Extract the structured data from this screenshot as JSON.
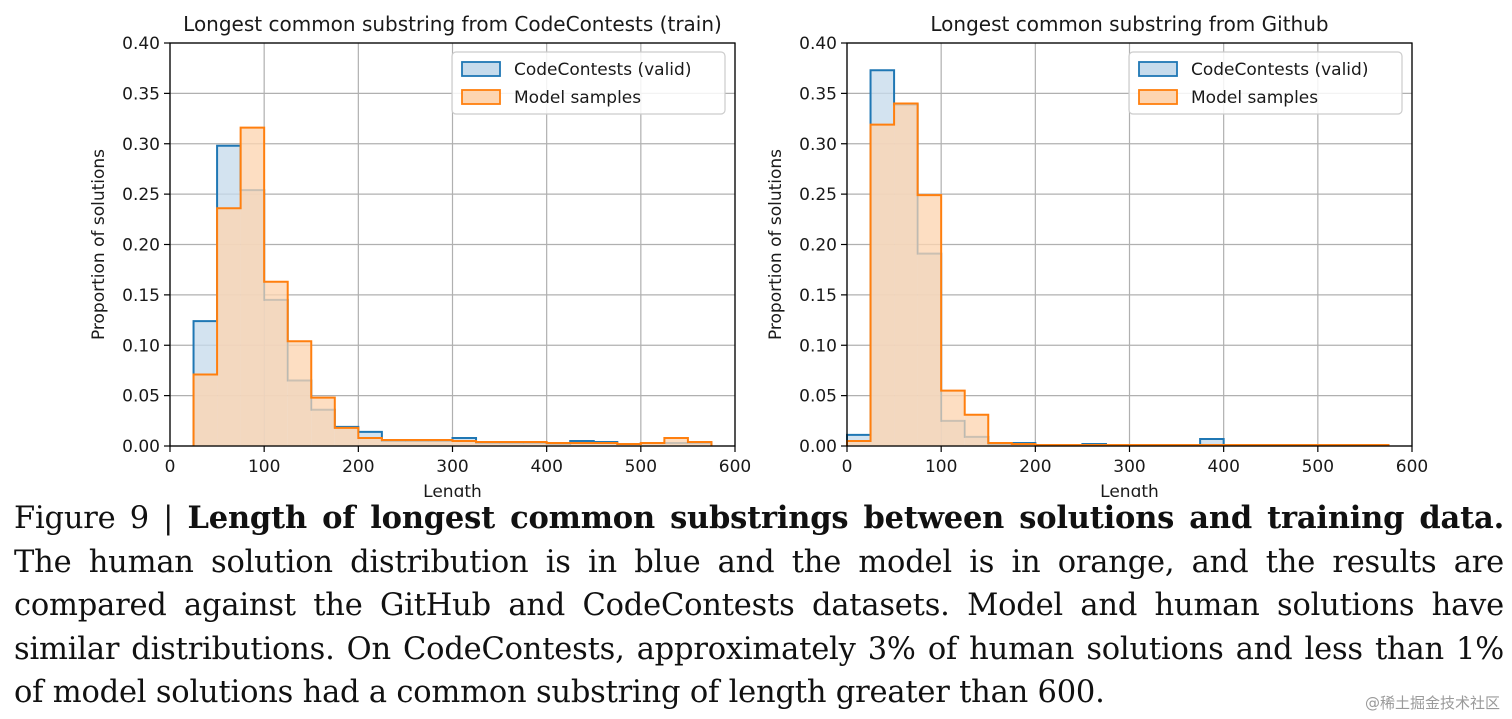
{
  "chart_data": [
    {
      "type": "histogram",
      "title": "Longest common substring from CodeContests (train)",
      "xlabel": "Length",
      "ylabel": "Proportion of solutions",
      "xlim": [
        0,
        600
      ],
      "ylim": [
        0,
        0.4
      ],
      "xticks": [
        "0",
        "100",
        "200",
        "300",
        "400",
        "500",
        "600"
      ],
      "yticks": [
        "0.00",
        "0.05",
        "0.10",
        "0.15",
        "0.20",
        "0.25",
        "0.30",
        "0.35",
        "0.40"
      ],
      "bin_edges": [
        25,
        50,
        75,
        100,
        125,
        150,
        175,
        200,
        225,
        250,
        275,
        300,
        325,
        350,
        375,
        400,
        425,
        450,
        475,
        500,
        525,
        550,
        575
      ],
      "legend_position": "top-right",
      "series": [
        {
          "name": "CodeContests (valid)",
          "color": "#1f77b4",
          "fill": "#c6dbec",
          "values": [
            0.124,
            0.298,
            0.254,
            0.145,
            0.065,
            0.036,
            0.019,
            0.014,
            0.005,
            0.005,
            0.005,
            0.008,
            0.003,
            0.003,
            0.003,
            0.002,
            0.005,
            0.004,
            0.002,
            0.003,
            0.003,
            0.003
          ]
        },
        {
          "name": "Model samples",
          "color": "#ff7f0e",
          "fill": "#fdd5b1",
          "values": [
            0.071,
            0.236,
            0.316,
            0.163,
            0.104,
            0.048,
            0.018,
            0.008,
            0.006,
            0.006,
            0.006,
            0.005,
            0.004,
            0.004,
            0.004,
            0.003,
            0.003,
            0.003,
            0.002,
            0.003,
            0.008,
            0.004
          ]
        }
      ]
    },
    {
      "type": "histogram",
      "title": "Longest common substring from Github",
      "xlabel": "Length",
      "ylabel": "Proportion of solutions",
      "xlim": [
        0,
        600
      ],
      "ylim": [
        0,
        0.4
      ],
      "xticks": [
        "0",
        "100",
        "200",
        "300",
        "400",
        "500",
        "600"
      ],
      "yticks": [
        "0.00",
        "0.05",
        "0.10",
        "0.15",
        "0.20",
        "0.25",
        "0.30",
        "0.35",
        "0.40"
      ],
      "bin_edges": [
        0,
        25,
        50,
        75,
        100,
        125,
        150,
        175,
        200,
        225,
        250,
        275,
        300,
        325,
        350,
        375,
        400,
        425,
        450,
        475,
        500,
        525,
        550,
        575
      ],
      "legend_position": "top-right",
      "series": [
        {
          "name": "CodeContests (valid)",
          "color": "#1f77b4",
          "fill": "#c6dbec",
          "values": [
            0.011,
            0.373,
            0.339,
            0.191,
            0.025,
            0.009,
            0.002,
            0.003,
            0.001,
            0.001,
            0.002,
            0.001,
            0.001,
            0.001,
            0.001,
            0.007,
            0.001,
            0.001,
            0.001,
            0.001,
            0.001,
            0.001,
            0.001
          ]
        },
        {
          "name": "Model samples",
          "color": "#ff7f0e",
          "fill": "#fdd5b1",
          "values": [
            0.005,
            0.319,
            0.34,
            0.249,
            0.055,
            0.031,
            0.003,
            0.002,
            0.001,
            0.001,
            0.001,
            0.001,
            0.001,
            0.001,
            0.001,
            0.001,
            0.001,
            0.001,
            0.001,
            0.001,
            0.001,
            0.001,
            0.001
          ]
        }
      ]
    }
  ],
  "caption": {
    "figure_label": "Figure 9 |",
    "bold_title": "Length of longest common substrings between solutions and training data.",
    "body": "The human solution distribution is in blue and the model is in orange, and the results are compared against the GitHub and CodeContests datasets. Model and human solutions have similar distributions. On CodeContests, approximately 3% of human solutions and less than 1% of model solutions had a common substring of length greater than 600."
  },
  "watermark": "@稀土掘金技术社区"
}
